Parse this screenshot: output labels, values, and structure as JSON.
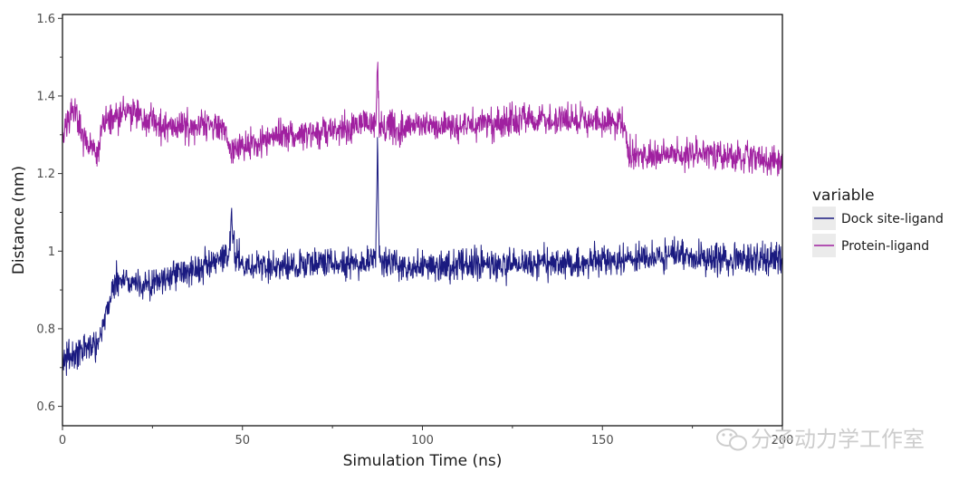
{
  "chart_data": {
    "type": "line",
    "title": "",
    "xlabel": "Simulation Time (ns)",
    "ylabel": "Distance (nm)",
    "xlim": [
      0,
      200
    ],
    "ylim": [
      0.55,
      1.61
    ],
    "x_ticks": [
      0,
      50,
      100,
      150,
      200
    ],
    "x_tick_labels": [
      "0",
      "50",
      "100",
      "150",
      "200"
    ],
    "y_ticks": [
      0.6,
      0.8,
      1.0,
      1.2,
      1.4,
      1.6
    ],
    "y_tick_labels": [
      "0.6",
      "0.8",
      "1",
      "1.2",
      "1.4",
      "1.6"
    ],
    "grid": false,
    "legend": {
      "title": "variable",
      "position": "right",
      "entries": [
        "Dock site-ligand",
        "Protein-ligand"
      ]
    },
    "series": [
      {
        "name": "Dock site-ligand",
        "color": "#1a1a80",
        "x": [
          0,
          5,
          10,
          13,
          15,
          20,
          25,
          30,
          40,
          46,
          47,
          48,
          52,
          60,
          70,
          80,
          87,
          87.5,
          88,
          90,
          100,
          110,
          120,
          130,
          140,
          150,
          160,
          170,
          180,
          190,
          200
        ],
        "values": [
          0.72,
          0.74,
          0.77,
          0.87,
          0.93,
          0.92,
          0.91,
          0.94,
          0.96,
          0.98,
          1.09,
          0.99,
          0.96,
          0.96,
          0.97,
          0.97,
          0.98,
          1.26,
          0.98,
          0.97,
          0.96,
          0.97,
          0.96,
          0.97,
          0.97,
          0.97,
          0.98,
          0.99,
          0.98,
          0.98,
          0.98
        ],
        "noise": 0.03
      },
      {
        "name": "Protein-ligand",
        "color": "#a020a0",
        "x": [
          0,
          3,
          6,
          10,
          11,
          15,
          20,
          25,
          30,
          40,
          45,
          46,
          47,
          50,
          55,
          60,
          70,
          80,
          87,
          87.5,
          88,
          90,
          100,
          110,
          120,
          130,
          140,
          150,
          155,
          156,
          157,
          160,
          170,
          180,
          190,
          200
        ],
        "values": [
          1.3,
          1.37,
          1.28,
          1.25,
          1.33,
          1.35,
          1.36,
          1.33,
          1.32,
          1.32,
          1.32,
          1.28,
          1.25,
          1.27,
          1.28,
          1.3,
          1.3,
          1.32,
          1.33,
          1.48,
          1.33,
          1.32,
          1.32,
          1.32,
          1.33,
          1.34,
          1.34,
          1.33,
          1.33,
          1.33,
          1.25,
          1.25,
          1.25,
          1.25,
          1.24,
          1.23
        ],
        "noise": 0.03
      }
    ]
  },
  "watermark": {
    "text": "分子动力学工作室",
    "icon": "wechat-icon"
  }
}
